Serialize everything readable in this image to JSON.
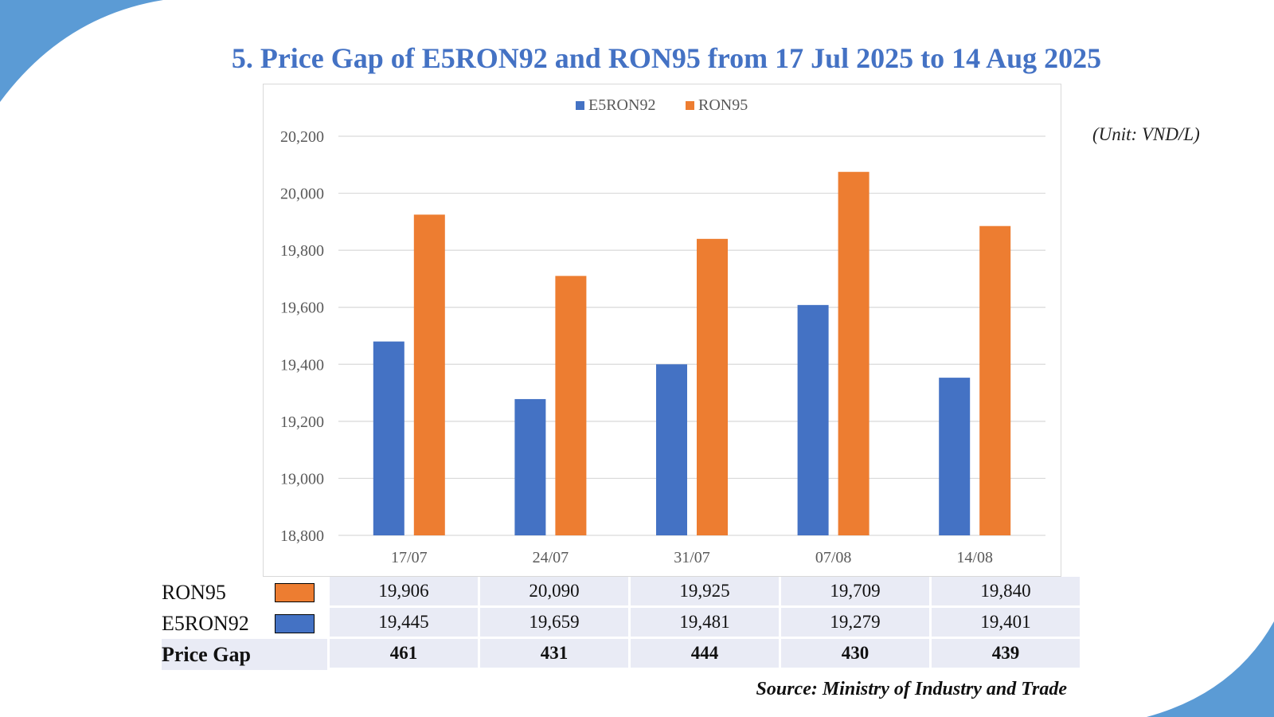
{
  "title": "5. Price Gap of E5RON92 and RON95 from 17 Jul 2025 to 14 Aug 2025",
  "unit_label": "(Unit: VND/L)",
  "source": "Source: Ministry of Industry and Trade",
  "colors": {
    "e5ron92": "#4472c4",
    "ron95": "#ed7d31",
    "title": "#4472c4",
    "decor": "#5b9bd5"
  },
  "chart_data": {
    "type": "bar",
    "categories": [
      "17/07",
      "24/07",
      "31/07",
      "07/08",
      "14/08"
    ],
    "series": [
      {
        "name": "E5RON92",
        "values": [
          19480,
          19278,
          19400,
          19608,
          19353
        ]
      },
      {
        "name": "RON95",
        "values": [
          19925,
          19710,
          19840,
          20075,
          19885
        ]
      }
    ],
    "ylim": [
      18800,
      20200
    ],
    "yticks": [
      "18,800",
      "19,000",
      "19,200",
      "19,400",
      "19,600",
      "19,800",
      "20,000",
      "20,200"
    ],
    "ytick_values": [
      18800,
      19000,
      19200,
      19400,
      19600,
      19800,
      20000,
      20200
    ],
    "legend_position": "top-center",
    "grid": true
  },
  "table": {
    "rows": [
      {
        "label": "RON95",
        "swatch": "ron95",
        "values": [
          "19,906",
          "20,090",
          "19,925",
          "19,709",
          "19,840"
        ]
      },
      {
        "label": "E5RON92",
        "swatch": "e5ron92",
        "values": [
          "19,445",
          "19,659",
          "19,481",
          "19,279",
          "19,401"
        ]
      },
      {
        "label": "Price Gap",
        "swatch": null,
        "values": [
          "461",
          "431",
          "444",
          "430",
          "439"
        ]
      }
    ]
  }
}
